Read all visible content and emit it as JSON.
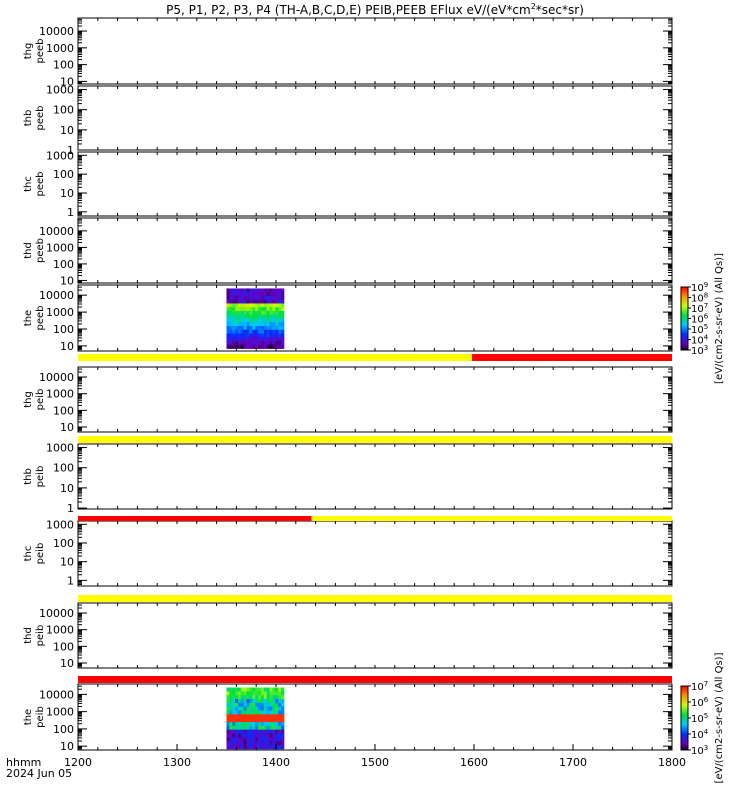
{
  "figure": {
    "title": "P5, P1, P2, P3, P4 (TH-A,B,C,D,E) PEIB,PEEB EFlux eV/(eV*cm",
    "title_sup": "2",
    "title_tail": "*sec*sr)",
    "time_label_1": "hhmm",
    "time_label_2": "2024 Jun 05"
  },
  "chart_data": {
    "type": "heatmap",
    "x_label": "hhmm",
    "date": "2024 Jun 05",
    "xlim": [
      1200,
      1800
    ],
    "x_ticks": [
      "1200",
      "1300",
      "1400",
      "1500",
      "1600",
      "1700",
      "1800"
    ],
    "panels": [
      {
        "probe": "thg",
        "species": "peeb",
        "ylim": [
          7,
          60000
        ],
        "y_ticks": [
          "10",
          "100",
          "1000",
          "10000"
        ]
      },
      {
        "probe": "thb",
        "species": "peeb",
        "ylim": [
          1,
          1500
        ],
        "y_ticks": [
          "1",
          "10",
          "100",
          "1000"
        ]
      },
      {
        "probe": "thc",
        "species": "peeb",
        "ylim": [
          0.6,
          1500
        ],
        "y_ticks": [
          "1",
          "10",
          "100",
          "1000"
        ]
      },
      {
        "probe": "thd",
        "species": "peeb",
        "ylim": [
          7,
          60000
        ],
        "y_ticks": [
          "10",
          "100",
          "1000",
          "10000"
        ]
      },
      {
        "probe": "the",
        "species": "peeb",
        "ylim": [
          5,
          40000
        ],
        "y_ticks": [
          "10",
          "100",
          "1000",
          "10000"
        ],
        "spectrogram": {
          "x_range": [
            1350,
            1408
          ],
          "y_range": [
            7,
            25000
          ]
        }
      },
      {
        "probe": "thg",
        "species": "peib",
        "ylim": [
          5,
          40000
        ],
        "y_ticks": [
          "10",
          "100",
          "1000",
          "10000"
        ]
      },
      {
        "probe": "thb",
        "species": "peib",
        "ylim": [
          0.9,
          1500
        ],
        "y_ticks": [
          "1",
          "10",
          "100",
          "1000"
        ]
      },
      {
        "probe": "thc",
        "species": "peib",
        "ylim": [
          0.5,
          1500
        ],
        "y_ticks": [
          "1",
          "10",
          "100",
          "1000"
        ]
      },
      {
        "probe": "thd",
        "species": "peib",
        "ylim": [
          5,
          40000
        ],
        "y_ticks": [
          "10",
          "100",
          "1000",
          "10000"
        ]
      },
      {
        "probe": "the",
        "species": "peib",
        "ylim": [
          6,
          40000
        ],
        "y_ticks": [
          "10",
          "100",
          "1000",
          "10000"
        ],
        "spectrogram": {
          "x_range": [
            1350,
            1408
          ],
          "y_range": [
            7,
            25000
          ]
        }
      }
    ],
    "status_bars": [
      {
        "after_panel": 4,
        "segments": [
          {
            "from": 1200,
            "to": 1598,
            "color": "#ffff00"
          },
          {
            "from": 1598,
            "to": 1800,
            "color": "#ff0000"
          }
        ]
      },
      {
        "after_panel": 5,
        "segments": [
          {
            "from": 1200,
            "to": 1800,
            "color": "#ffff00"
          }
        ]
      },
      {
        "after_panel": 6,
        "segments": [
          {
            "from": 1200,
            "to": 1436,
            "color": "#ff0000"
          },
          {
            "from": 1436,
            "to": 1800,
            "color": "#ffff00"
          }
        ]
      },
      {
        "after_panel": 7,
        "segments": [
          {
            "from": 1200,
            "to": 1800,
            "color": "#ffff00"
          }
        ]
      },
      {
        "after_panel": 8,
        "segments": [
          {
            "from": 1200,
            "to": 1800,
            "color": "#ff0000"
          }
        ]
      }
    ],
    "colorbars": [
      {
        "label": "[eV/(cm2-s-sr-eV) (All Qs)]",
        "tick_base": "10",
        "tick_exponents": [
          "3",
          "4",
          "5",
          "6",
          "7",
          "8",
          "9"
        ]
      },
      {
        "label": "[eV/(cm2-s-sr-eV) (All Qs)]",
        "tick_base": "10",
        "tick_exponents": [
          "3",
          "4",
          "5",
          "6",
          "7"
        ]
      }
    ]
  }
}
